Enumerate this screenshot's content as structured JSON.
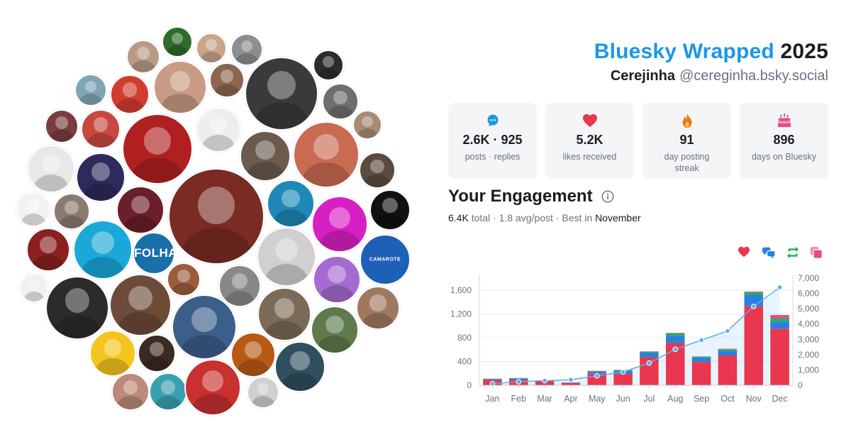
{
  "header": {
    "brand": "Bluesky Wrapped",
    "year": "2025",
    "display_name": "Cerejinha",
    "handle": "@cereginha.bsky.social"
  },
  "stats": [
    {
      "icon": "speech-bubble-icon",
      "value": "2.6K · 925",
      "label": "posts · replies",
      "color": "#1a97e8"
    },
    {
      "icon": "heart-icon",
      "value": "5.2K",
      "label": "likes received",
      "color": "#e8374e"
    },
    {
      "icon": "flame-icon",
      "value": "91",
      "label": "day posting streak",
      "color": "#f47216"
    },
    {
      "icon": "cake-icon",
      "value": "896",
      "label": "days on Bluesky",
      "color": "#e14f8a"
    }
  ],
  "engagement": {
    "title": "Your Engagement",
    "total_value": "6.4K",
    "total_suffix": "total",
    "avg_text": "1.8 avg/post",
    "best_prefix": "Best in",
    "best_month": "November"
  },
  "legend": [
    {
      "icon": "heart-icon",
      "name": "likes",
      "color": "#e8374e"
    },
    {
      "icon": "reply-bubbles-icon",
      "name": "replies",
      "color": "#2b7fe0"
    },
    {
      "icon": "repost-icon",
      "name": "reposts",
      "color": "#1fb35a"
    },
    {
      "icon": "quote-icon",
      "name": "quotes",
      "color": "#e14f8a"
    }
  ],
  "chart_data": {
    "type": "bar",
    "categories": [
      "Jan",
      "Feb",
      "Mar",
      "Apr",
      "May",
      "Jun",
      "Jul",
      "Aug",
      "Sep",
      "Oct",
      "Nov",
      "Dec"
    ],
    "series": [
      {
        "name": "likes",
        "color": "#e8374e",
        "values": [
          90,
          95,
          70,
          40,
          200,
          190,
          470,
          710,
          390,
          500,
          1330,
          950
        ]
      },
      {
        "name": "replies",
        "color": "#2b7fe0",
        "values": [
          15,
          20,
          10,
          5,
          30,
          50,
          80,
          120,
          70,
          80,
          190,
          120
        ]
      },
      {
        "name": "reposts",
        "color": "#1fb35a",
        "values": [
          5,
          5,
          3,
          2,
          10,
          15,
          15,
          40,
          20,
          25,
          40,
          50
        ]
      },
      {
        "name": "quotes",
        "color": "#e14f8a",
        "values": [
          2,
          2,
          1,
          1,
          4,
          5,
          5,
          10,
          5,
          8,
          15,
          60
        ]
      }
    ],
    "cumulative": {
      "color": "#5aaef0",
      "values": [
        110,
        230,
        300,
        360,
        620,
        870,
        1450,
        2350,
        2950,
        3550,
        5150,
        6400
      ]
    },
    "y_left": {
      "min": 0,
      "max": 1800,
      "ticks": [
        0,
        400,
        800,
        1200,
        1600
      ],
      "tick_labels": [
        "0",
        "400",
        "800",
        "1,200",
        "1,600"
      ]
    },
    "y_right": {
      "min": 0,
      "max": 7000,
      "ticks": [
        0,
        1000,
        2000,
        3000,
        4000,
        5000,
        6000,
        7000
      ],
      "tick_labels": [
        "0",
        "1,000",
        "2,000",
        "3,000",
        "4,000",
        "5,000",
        "6,000",
        "7,000"
      ]
    },
    "grid": true
  }
}
